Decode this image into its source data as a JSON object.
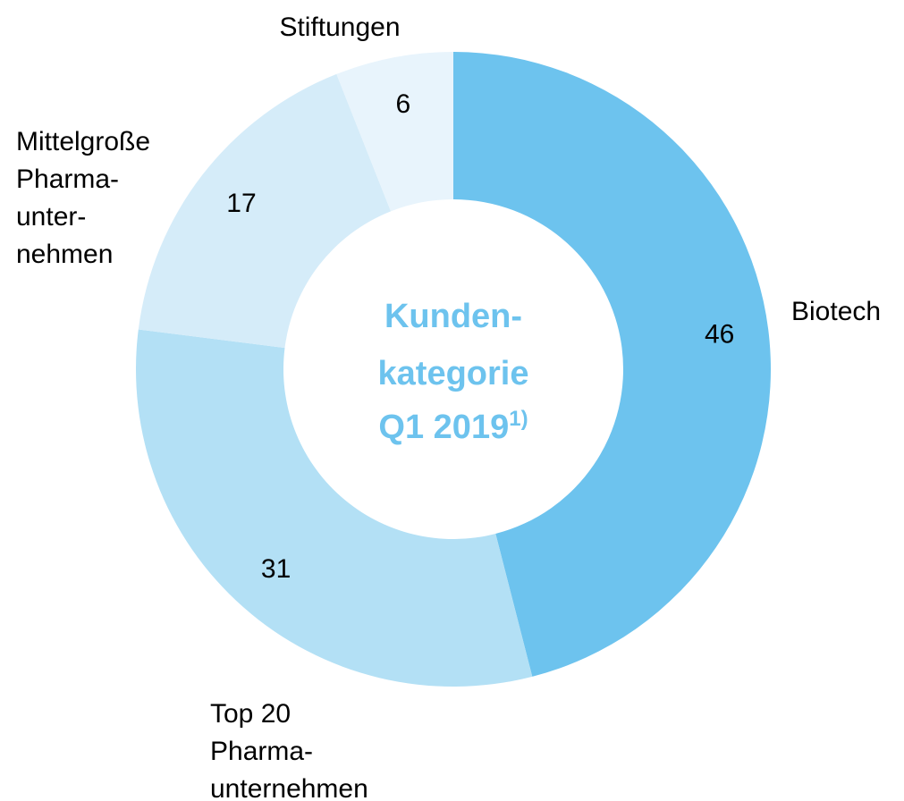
{
  "chart_data": {
    "type": "donut",
    "title": [
      "Kunden-",
      "kategorie",
      "Q1 2019"
    ],
    "title_footnote": "1)",
    "categories": [
      [
        "Biotech"
      ],
      [
        "Top 20",
        "Pharma-",
        "unternehmen"
      ],
      [
        "Mittelgroße",
        "Pharma-",
        "unter-",
        "nehmen"
      ],
      [
        "Stiftungen"
      ]
    ],
    "values": [
      46,
      31,
      17,
      6
    ],
    "colors": [
      "#6dc3ee",
      "#b3e0f5",
      "#d5ecf9",
      "#e8f4fc"
    ]
  }
}
